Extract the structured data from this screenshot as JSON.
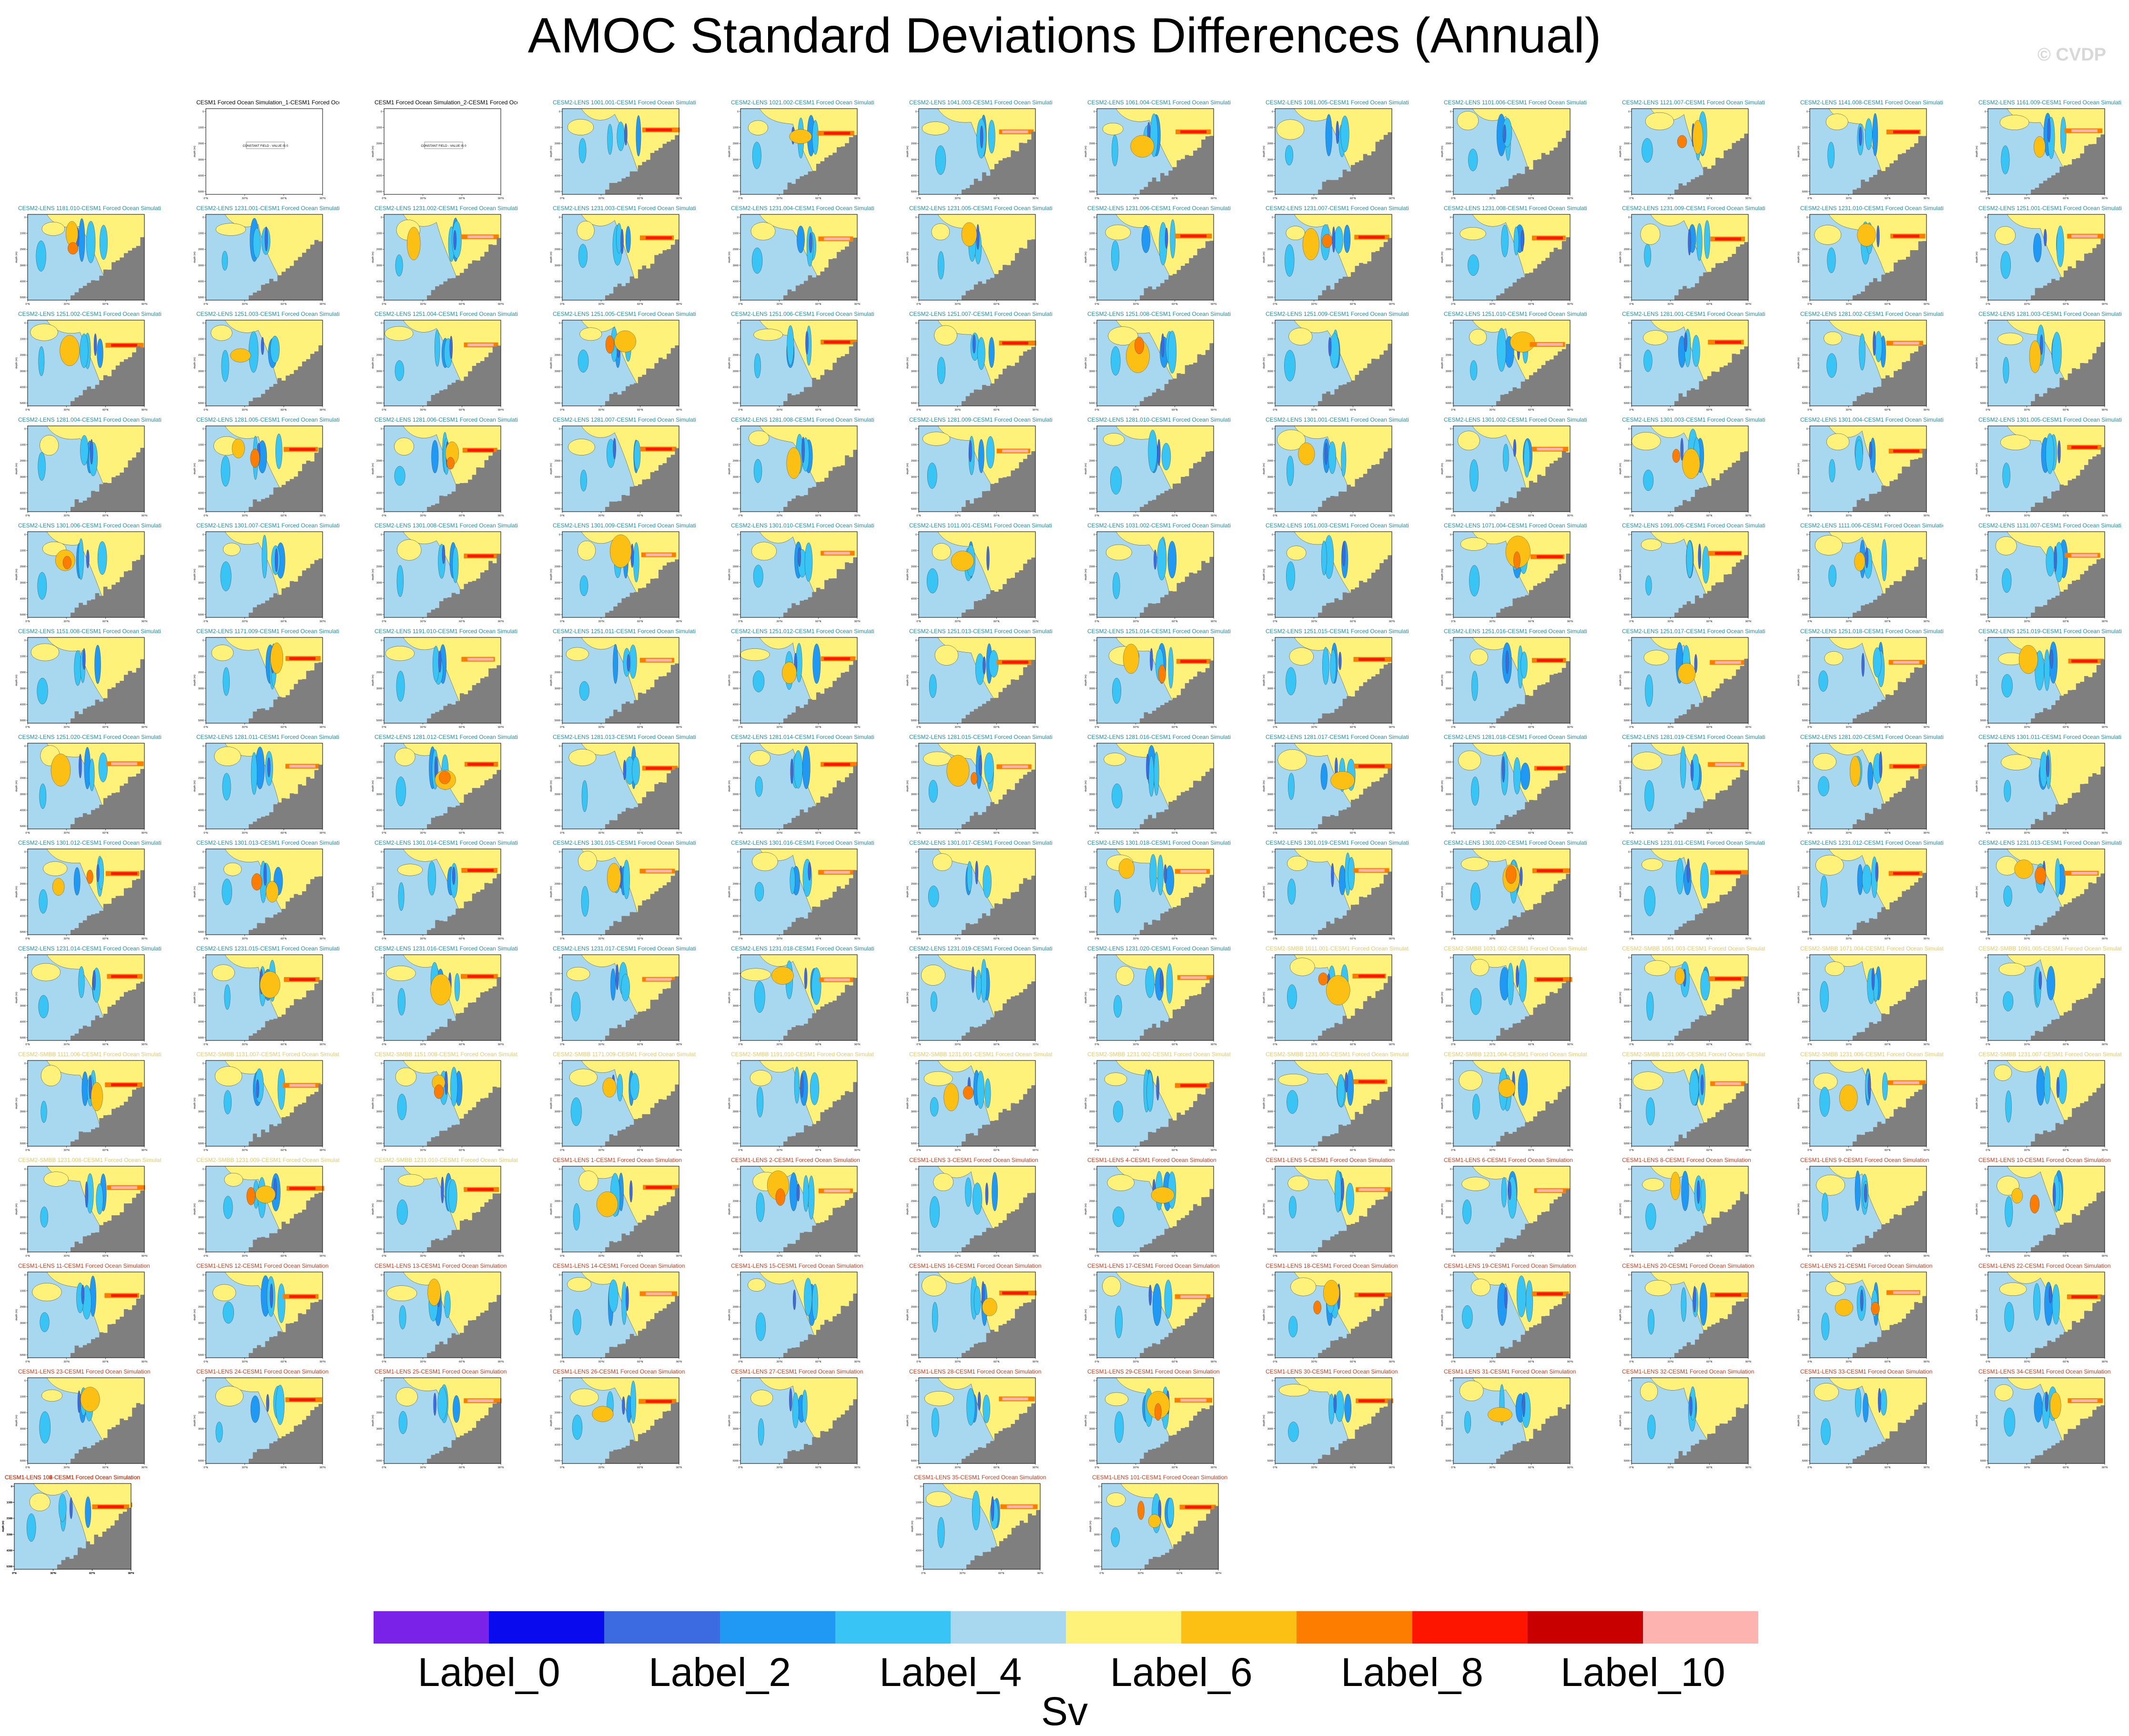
{
  "title": "AMOC Standard Deviations Differences (Annual)",
  "watermark": "© CVDP",
  "colorbar": {
    "unit": "Sv",
    "colors": [
      "#7b22e8",
      "#0a0aef",
      "#3c6ae0",
      "#1f99f3",
      "#38c4f5",
      "#a8d8f0",
      "#fff27a",
      "#fcc015",
      "#fd7d00",
      "#fd1500",
      "#c80000",
      "#fdb3b0"
    ],
    "labels": [
      "Label_0",
      "Label_2",
      "Label_4",
      "Label_6",
      "Label_8",
      "Label_10"
    ]
  },
  "chart_data": {
    "type": "heatmap",
    "title": "AMOC Standard Deviations Differences (Annual)",
    "colorbar_unit": "Sv",
    "colorbar_labels": [
      "Label_0",
      "Label_2",
      "Label_4",
      "Label_6",
      "Label_8",
      "Label_10"
    ],
    "panel_axis": {
      "ylabel": "depth (m)",
      "yticks": [
        "0",
        "1000",
        "2000",
        "3000",
        "4000",
        "5000"
      ],
      "xticks": [
        "0°N",
        "30°N",
        "60°N",
        "90°N"
      ]
    },
    "constant_field_text": "CONSTANT FIELD - VALUE IS 0",
    "panels": [
      {
        "title": "",
        "empty": true
      },
      {
        "title": "CESM1 Forced Ocean Simulation_1-CESM1 Forced Ocean Simulation",
        "constant": true
      },
      {
        "title": "CESM1 Forced Ocean Simulation_2-CESM1 Forced Ocean Simulation",
        "constant": true
      },
      {
        "title": "CESM2-LENS 1001.001-CESM1 Forced Ocean Simulation"
      },
      {
        "title": "CESM2-LENS 1021.002-CESM1 Forced Ocean Simulation"
      },
      {
        "title": "CESM2-LENS 1041.003-CESM1 Forced Ocean Simulation"
      },
      {
        "title": "CESM2-LENS 1061.004-CESM1 Forced Ocean Simulation"
      },
      {
        "title": "CESM2-LENS 1081.005-CESM1 Forced Ocean Simulation"
      },
      {
        "title": "CESM2-LENS 1101.006-CESM1 Forced Ocean Simulation"
      },
      {
        "title": "CESM2-LENS 1121.007-CESM1 Forced Ocean Simulation"
      },
      {
        "title": "CESM2-LENS 1141.008-CESM1 Forced Ocean Simulation"
      },
      {
        "title": "CESM2-LENS 1161.009-CESM1 Forced Ocean Simulation"
      },
      {
        "title": "CESM2-LENS 1181.010-CESM1 Forced Ocean Simulation"
      },
      {
        "title": "CESM2-LENS 1231.001-CESM1 Forced Ocean Simulation"
      },
      {
        "title": "CESM2-LENS 1231.002-CESM1 Forced Ocean Simulation"
      },
      {
        "title": "CESM2-LENS 1231.003-CESM1 Forced Ocean Simulation"
      },
      {
        "title": "CESM2-LENS 1231.004-CESM1 Forced Ocean Simulation"
      },
      {
        "title": "CESM2-LENS 1231.005-CESM1 Forced Ocean Simulation"
      },
      {
        "title": "CESM2-LENS 1231.006-CESM1 Forced Ocean Simulation"
      },
      {
        "title": "CESM2-LENS 1231.007-CESM1 Forced Ocean Simulation"
      },
      {
        "title": "CESM2-LENS 1231.008-CESM1 Forced Ocean Simulation"
      },
      {
        "title": "CESM2-LENS 1231.009-CESM1 Forced Ocean Simulation"
      },
      {
        "title": "CESM2-LENS 1231.010-CESM1 Forced Ocean Simulation"
      },
      {
        "title": "CESM2-LENS 1251.001-CESM1 Forced Ocean Simulation"
      },
      {
        "title": "CESM2-LENS 1251.002-CESM1 Forced Ocean Simulation"
      },
      {
        "title": "CESM2-LENS 1251.003-CESM1 Forced Ocean Simulation"
      },
      {
        "title": "CESM2-LENS 1251.004-CESM1 Forced Ocean Simulation"
      },
      {
        "title": "CESM2-LENS 1251.005-CESM1 Forced Ocean Simulation"
      },
      {
        "title": "CESM2-LENS 1251.006-CESM1 Forced Ocean Simulation"
      },
      {
        "title": "CESM2-LENS 1251.007-CESM1 Forced Ocean Simulation"
      },
      {
        "title": "CESM2-LENS 1251.008-CESM1 Forced Ocean Simulation"
      },
      {
        "title": "CESM2-LENS 1251.009-CESM1 Forced Ocean Simulation"
      },
      {
        "title": "CESM2-LENS 1251.010-CESM1 Forced Ocean Simulation"
      },
      {
        "title": "CESM2-LENS 1281.001-CESM1 Forced Ocean Simulation"
      },
      {
        "title": "CESM2-LENS 1281.002-CESM1 Forced Ocean Simulation"
      },
      {
        "title": "CESM2-LENS 1281.003-CESM1 Forced Ocean Simulation"
      },
      {
        "title": "CESM2-LENS 1281.004-CESM1 Forced Ocean Simulation"
      },
      {
        "title": "CESM2-LENS 1281.005-CESM1 Forced Ocean Simulation"
      },
      {
        "title": "CESM2-LENS 1281.006-CESM1 Forced Ocean Simulation"
      },
      {
        "title": "CESM2-LENS 1281.007-CESM1 Forced Ocean Simulation"
      },
      {
        "title": "CESM2-LENS 1281.008-CESM1 Forced Ocean Simulation"
      },
      {
        "title": "CESM2-LENS 1281.009-CESM1 Forced Ocean Simulation"
      },
      {
        "title": "CESM2-LENS 1281.010-CESM1 Forced Ocean Simulation"
      },
      {
        "title": "CESM2-LENS 1301.001-CESM1 Forced Ocean Simulation"
      },
      {
        "title": "CESM2-LENS 1301.002-CESM1 Forced Ocean Simulation"
      },
      {
        "title": "CESM2-LENS 1301.003-CESM1 Forced Ocean Simulation"
      },
      {
        "title": "CESM2-LENS 1301.004-CESM1 Forced Ocean Simulation"
      },
      {
        "title": "CESM2-LENS 1301.005-CESM1 Forced Ocean Simulation"
      },
      {
        "title": "CESM2-LENS 1301.006-CESM1 Forced Ocean Simulation"
      },
      {
        "title": "CESM2-LENS 1301.007-CESM1 Forced Ocean Simulation"
      },
      {
        "title": "CESM2-LENS 1301.008-CESM1 Forced Ocean Simulation"
      },
      {
        "title": "CESM2-LENS 1301.009-CESM1 Forced Ocean Simulation"
      },
      {
        "title": "CESM2-LENS 1301.010-CESM1 Forced Ocean Simulation"
      },
      {
        "title": "CESM2-LENS 1011.001-CESM1 Forced Ocean Simulation"
      },
      {
        "title": "CESM2-LENS 1031.002-CESM1 Forced Ocean Simulation"
      },
      {
        "title": "CESM2-LENS 1051.003-CESM1 Forced Ocean Simulation"
      },
      {
        "title": "CESM2-LENS 1071.004-CESM1 Forced Ocean Simulation"
      },
      {
        "title": "CESM2-LENS 1091.005-CESM1 Forced Ocean Simulation"
      },
      {
        "title": "CESM2-LENS 1111.006-CESM1 Forced Ocean Simulation"
      },
      {
        "title": "CESM2-LENS 1131.007-CESM1 Forced Ocean Simulation"
      },
      {
        "title": "CESM2-LENS 1151.008-CESM1 Forced Ocean Simulation"
      },
      {
        "title": "CESM2-LENS 1171.009-CESM1 Forced Ocean Simulation"
      },
      {
        "title": "CESM2-LENS 1191.010-CESM1 Forced Ocean Simulation"
      },
      {
        "title": "CESM2-LENS 1251.011-CESM1 Forced Ocean Simulation"
      },
      {
        "title": "CESM2-LENS 1251.012-CESM1 Forced Ocean Simulation"
      },
      {
        "title": "CESM2-LENS 1251.013-CESM1 Forced Ocean Simulation"
      },
      {
        "title": "CESM2-LENS 1251.014-CESM1 Forced Ocean Simulation"
      },
      {
        "title": "CESM2-LENS 1251.015-CESM1 Forced Ocean Simulation"
      },
      {
        "title": "CESM2-LENS 1251.016-CESM1 Forced Ocean Simulation"
      },
      {
        "title": "CESM2-LENS 1251.017-CESM1 Forced Ocean Simulation"
      },
      {
        "title": "CESM2-LENS 1251.018-CESM1 Forced Ocean Simulation"
      },
      {
        "title": "CESM2-LENS 1251.019-CESM1 Forced Ocean Simulation"
      },
      {
        "title": "CESM2-LENS 1251.020-CESM1 Forced Ocean Simulation"
      },
      {
        "title": "CESM2-LENS 1281.011-CESM1 Forced Ocean Simulation"
      },
      {
        "title": "CESM2-LENS 1281.012-CESM1 Forced Ocean Simulation"
      },
      {
        "title": "CESM2-LENS 1281.013-CESM1 Forced Ocean Simulation"
      },
      {
        "title": "CESM2-LENS 1281.014-CESM1 Forced Ocean Simulation"
      },
      {
        "title": "CESM2-LENS 1281.015-CESM1 Forced Ocean Simulation"
      },
      {
        "title": "CESM2-LENS 1281.016-CESM1 Forced Ocean Simulation"
      },
      {
        "title": "CESM2-LENS 1281.017-CESM1 Forced Ocean Simulation"
      },
      {
        "title": "CESM2-LENS 1281.018-CESM1 Forced Ocean Simulation"
      },
      {
        "title": "CESM2-LENS 1281.019-CESM1 Forced Ocean Simulation"
      },
      {
        "title": "CESM2-LENS 1281.020-CESM1 Forced Ocean Simulation"
      },
      {
        "title": "CESM2-LENS 1301.011-CESM1 Forced Ocean Simulation"
      },
      {
        "title": "CESM2-LENS 1301.012-CESM1 Forced Ocean Simulation"
      },
      {
        "title": "CESM2-LENS 1301.013-CESM1 Forced Ocean Simulation"
      },
      {
        "title": "CESM2-LENS 1301.014-CESM1 Forced Ocean Simulation"
      },
      {
        "title": "CESM2-LENS 1301.015-CESM1 Forced Ocean Simulation"
      },
      {
        "title": "CESM2-LENS 1301.016-CESM1 Forced Ocean Simulation"
      },
      {
        "title": "CESM2-LENS 1301.017-CESM1 Forced Ocean Simulation"
      },
      {
        "title": "CESM2-LENS 1301.018-CESM1 Forced Ocean Simulation"
      },
      {
        "title": "CESM2-LENS 1301.019-CESM1 Forced Ocean Simulation"
      },
      {
        "title": "CESM2-LENS 1301.020-CESM1 Forced Ocean Simulation"
      },
      {
        "title": "CESM2-LENS 1231.011-CESM1 Forced Ocean Simulation"
      },
      {
        "title": "CESM2-LENS 1231.012-CESM1 Forced Ocean Simulation"
      },
      {
        "title": "CESM2-LENS 1231.013-CESM1 Forced Ocean Simulation"
      },
      {
        "title": "CESM2-LENS 1231.014-CESM1 Forced Ocean Simulation"
      },
      {
        "title": "CESM2-LENS 1231.015-CESM1 Forced Ocean Simulation"
      },
      {
        "title": "CESM2-LENS 1231.016-CESM1 Forced Ocean Simulation"
      },
      {
        "title": "CESM2-LENS 1231.017-CESM1 Forced Ocean Simulation"
      },
      {
        "title": "CESM2-LENS 1231.018-CESM1 Forced Ocean Simulation"
      },
      {
        "title": "CESM2-LENS 1231.019-CESM1 Forced Ocean Simulation"
      },
      {
        "title": "CESM2-LENS 1231.020-CESM1 Forced Ocean Simulation"
      },
      {
        "title": "CESM2-SMBB 1011.001-CESM1 Forced Ocean Simulation"
      },
      {
        "title": "CESM2-SMBB 1031.002-CESM1 Forced Ocean Simulation"
      },
      {
        "title": "CESM2-SMBB 1051.003-CESM1 Forced Ocean Simulation"
      },
      {
        "title": "CESM2-SMBB 1071.004-CESM1 Forced Ocean Simulation"
      },
      {
        "title": "CESM2-SMBB 1091.005-CESM1 Forced Ocean Simulation"
      },
      {
        "title": "CESM2-SMBB 1111.006-CESM1 Forced Ocean Simulation"
      },
      {
        "title": "CESM2-SMBB 1131.007-CESM1 Forced Ocean Simulation"
      },
      {
        "title": "CESM2-SMBB 1151.008-CESM1 Forced Ocean Simulation"
      },
      {
        "title": "CESM2-SMBB 1171.009-CESM1 Forced Ocean Simulation"
      },
      {
        "title": "CESM2-SMBB 1191.010-CESM1 Forced Ocean Simulation"
      },
      {
        "title": "CESM2-SMBB 1231.001-CESM1 Forced Ocean Simulation"
      },
      {
        "title": "CESM2-SMBB 1231.002-CESM1 Forced Ocean Simulation"
      },
      {
        "title": "CESM2-SMBB 1231.003-CESM1 Forced Ocean Simulation"
      },
      {
        "title": "CESM2-SMBB 1231.004-CESM1 Forced Ocean Simulation"
      },
      {
        "title": "CESM2-SMBB 1231.005-CESM1 Forced Ocean Simulation"
      },
      {
        "title": "CESM2-SMBB 1231.006-CESM1 Forced Ocean Simulation"
      },
      {
        "title": "CESM2-SMBB 1231.007-CESM1 Forced Ocean Simulation"
      },
      {
        "title": "CESM2-SMBB 1231.008-CESM1 Forced Ocean Simulation"
      },
      {
        "title": "CESM2-SMBB 1231.009-CESM1 Forced Ocean Simulation"
      },
      {
        "title": "CESM2-SMBB 1231.010-CESM1 Forced Ocean Simulation"
      },
      {
        "title": "CESM1-LENS 1-CESM1 Forced Ocean Simulation"
      },
      {
        "title": "CESM1-LENS 2-CESM1 Forced Ocean Simulation"
      },
      {
        "title": "CESM1-LENS 3-CESM1 Forced Ocean Simulation"
      },
      {
        "title": "CESM1-LENS 4-CESM1 Forced Ocean Simulation"
      },
      {
        "title": "CESM1-LENS 5-CESM1 Forced Ocean Simulation"
      },
      {
        "title": "CESM1-LENS 6-CESM1 Forced Ocean Simulation"
      },
      {
        "title": "CESM1-LENS 8-CESM1 Forced Ocean Simulation"
      },
      {
        "title": "CESM1-LENS 9-CESM1 Forced Ocean Simulation"
      },
      {
        "title": "CESM1-LENS 10-CESM1 Forced Ocean Simulation"
      },
      {
        "title": "CESM1-LENS 11-CESM1 Forced Ocean Simulation"
      },
      {
        "title": "CESM1-LENS 12-CESM1 Forced Ocean Simulation"
      },
      {
        "title": "CESM1-LENS 13-CESM1 Forced Ocean Simulation"
      },
      {
        "title": "CESM1-LENS 14-CESM1 Forced Ocean Simulation"
      },
      {
        "title": "CESM1-LENS 15-CESM1 Forced Ocean Simulation"
      },
      {
        "title": "CESM1-LENS 16-CESM1 Forced Ocean Simulation"
      },
      {
        "title": "CESM1-LENS 17-CESM1 Forced Ocean Simulation"
      },
      {
        "title": "CESM1-LENS 18-CESM1 Forced Ocean Simulation"
      },
      {
        "title": "CESM1-LENS 19-CESM1 Forced Ocean Simulation"
      },
      {
        "title": "CESM1-LENS 20-CESM1 Forced Ocean Simulation"
      },
      {
        "title": "CESM1-LENS 21-CESM1 Forced Ocean Simulation"
      },
      {
        "title": "CESM1-LENS 22-CESM1 Forced Ocean Simulation"
      },
      {
        "title": "CESM1-LENS 23-CESM1 Forced Ocean Simulation"
      },
      {
        "title": "CESM1-LENS 24-CESM1 Forced Ocean Simulation"
      },
      {
        "title": "CESM1-LENS 25-CESM1 Forced Ocean Simulation"
      },
      {
        "title": "CESM1-LENS 26-CESM1 Forced Ocean Simulation"
      },
      {
        "title": "CESM1-LENS 27-CESM1 Forced Ocean Simulation"
      },
      {
        "title": "CESM1-LENS 28-CESM1 Forced Ocean Simulation"
      },
      {
        "title": "CESM1-LENS 29-CESM1 Forced Ocean Simulation"
      },
      {
        "title": "CESM1-LENS 30-CESM1 Forced Ocean Simulation"
      },
      {
        "title": "CESM1-LENS 31-CESM1 Forced Ocean Simulation"
      },
      {
        "title": "CESM1-LENS 32-CESM1 Forced Ocean Simulation"
      },
      {
        "title": "CESM1-LENS 33-CESM1 Forced Ocean Simulation"
      },
      {
        "title": "CESM1-LENS 34-CESM1 Forced Ocean Simulation"
      },
      {
        "title": "CESM1-LENS 35-CESM1 Forced Ocean Simulation"
      },
      {
        "title": "CESM1-LENS 101-CESM1 Forced Ocean Simulation"
      },
      {
        "title": "CESM1-LENS 102-CESM1 Forced Ocean Simulation"
      },
      {
        "title": "CESM1-LENS 103-CESM1 Forced Ocean Simulation"
      },
      {
        "title": "CESM1-LENS 104-CESM1 Forced Ocean Simulation"
      },
      {
        "title": "CESM1-LENS 105-CESM1 Forced Ocean Simulation"
      }
    ]
  }
}
